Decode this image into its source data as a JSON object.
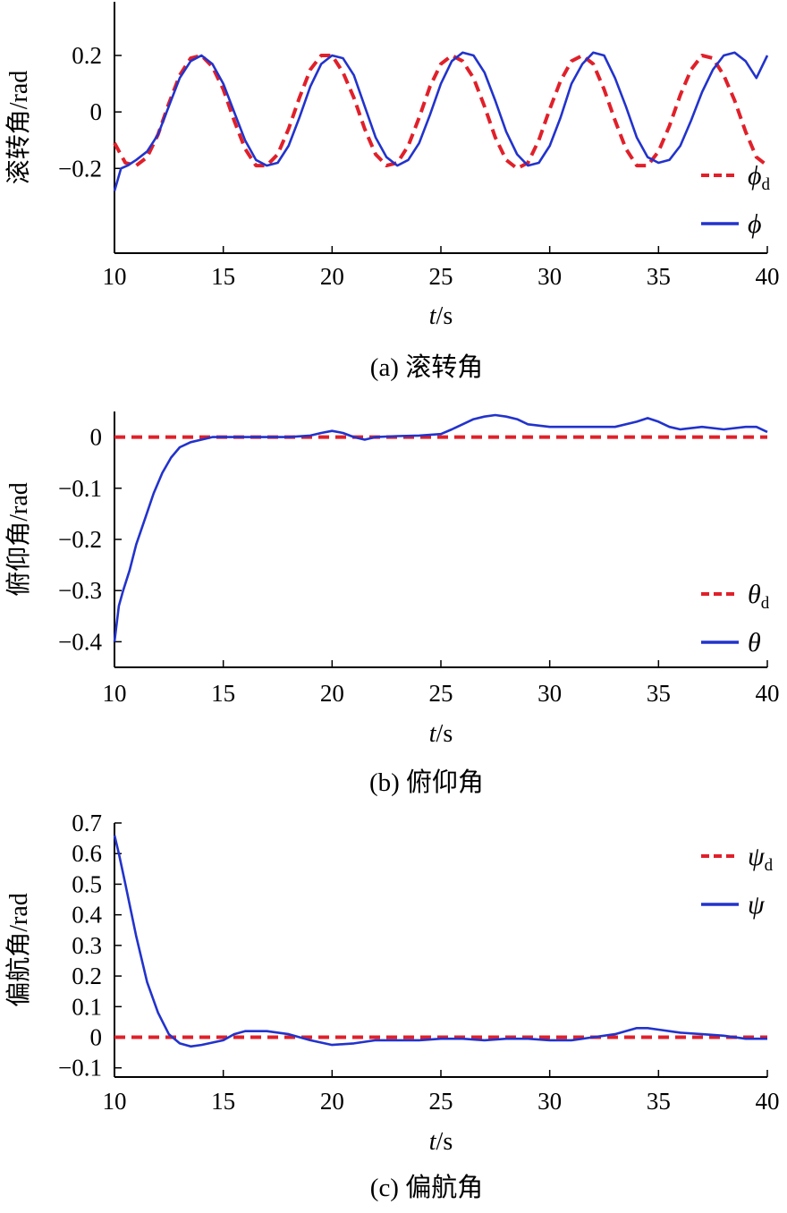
{
  "figure": {
    "x_axis_label_var": "t",
    "x_axis_label_unit": "/s"
  },
  "colors": {
    "desired": "#e0202a",
    "actual": "#2233cc",
    "axis": "#000000"
  },
  "chart_data": [
    {
      "type": "line",
      "id": "roll",
      "caption": "(a) 滚转角",
      "ylabel": "滚转角/rad",
      "xlabel": "t/s",
      "xlim": [
        10,
        40
      ],
      "ylim": [
        -0.5,
        0.39
      ],
      "xticks": [
        10,
        15,
        20,
        25,
        30,
        35,
        40
      ],
      "xtick_labels": [
        "10",
        "15",
        "20",
        "25",
        "30",
        "35",
        "40"
      ],
      "yticks": [
        0.2,
        0,
        -0.2
      ],
      "ytick_labels": [
        "0.2",
        "0",
        "−0.2"
      ],
      "legend_position": "bottom-right",
      "series": [
        {
          "name": "ϕ",
          "subscript": "d",
          "style": "dashed",
          "color": "#e0202a",
          "x": [
            10,
            10.5,
            11,
            11.5,
            12,
            12.5,
            13,
            13.5,
            14,
            14.5,
            15,
            15.5,
            16,
            16.5,
            17,
            17.5,
            18,
            18.5,
            19,
            19.5,
            20,
            20.5,
            21,
            21.5,
            22,
            22.5,
            23,
            23.5,
            24,
            24.5,
            25,
            25.5,
            26,
            26.5,
            27,
            27.5,
            28,
            28.5,
            29,
            29.5,
            30,
            30.5,
            31,
            31.5,
            32,
            32.5,
            33,
            33.5,
            34,
            34.5,
            35,
            35.5,
            36,
            36.5,
            37,
            37.5,
            38,
            38.5,
            39,
            39.5,
            40
          ],
          "y": [
            -0.11,
            -0.18,
            -0.19,
            -0.16,
            -0.08,
            0.03,
            0.13,
            0.19,
            0.2,
            0.16,
            0.08,
            -0.03,
            -0.13,
            -0.19,
            -0.19,
            -0.15,
            -0.06,
            0.05,
            0.15,
            0.2,
            0.2,
            0.14,
            0.05,
            -0.06,
            -0.15,
            -0.19,
            -0.18,
            -0.12,
            -0.02,
            0.09,
            0.17,
            0.2,
            0.18,
            0.12,
            0.02,
            -0.09,
            -0.17,
            -0.2,
            -0.18,
            -0.1,
            0.01,
            0.11,
            0.18,
            0.2,
            0.17,
            0.08,
            -0.03,
            -0.13,
            -0.19,
            -0.19,
            -0.14,
            -0.05,
            0.06,
            0.15,
            0.2,
            0.19,
            0.13,
            0.04,
            -0.07,
            -0.16,
            -0.19
          ]
        },
        {
          "name": "ϕ",
          "subscript": "",
          "style": "solid",
          "color": "#2233cc",
          "x": [
            10,
            10.3,
            10.6,
            11,
            11.5,
            12,
            12.5,
            13,
            13.5,
            14,
            14.5,
            15,
            15.5,
            16,
            16.5,
            17,
            17.5,
            18,
            18.5,
            19,
            19.5,
            20,
            20.5,
            21,
            21.5,
            22,
            22.5,
            23,
            23.5,
            24,
            24.5,
            25,
            25.5,
            26,
            26.5,
            27,
            27.5,
            28,
            28.5,
            29,
            29.5,
            30,
            30.5,
            31,
            31.5,
            32,
            32.5,
            33,
            33.5,
            34,
            34.5,
            35,
            35.5,
            36,
            36.5,
            37,
            37.5,
            38,
            38.5,
            39,
            39.5,
            40
          ],
          "y": [
            -0.28,
            -0.2,
            -0.19,
            -0.17,
            -0.14,
            -0.08,
            0.02,
            0.12,
            0.18,
            0.2,
            0.17,
            0.1,
            0.0,
            -0.1,
            -0.17,
            -0.19,
            -0.18,
            -0.12,
            -0.02,
            0.09,
            0.17,
            0.2,
            0.19,
            0.13,
            0.02,
            -0.09,
            -0.16,
            -0.19,
            -0.17,
            -0.11,
            -0.01,
            0.1,
            0.18,
            0.21,
            0.2,
            0.14,
            0.04,
            -0.07,
            -0.15,
            -0.19,
            -0.18,
            -0.12,
            -0.02,
            0.1,
            0.17,
            0.21,
            0.2,
            0.12,
            0.02,
            -0.09,
            -0.16,
            -0.18,
            -0.17,
            -0.12,
            -0.03,
            0.07,
            0.15,
            0.2,
            0.21,
            0.18,
            0.12,
            0.2
          ]
        }
      ]
    },
    {
      "type": "line",
      "id": "pitch",
      "caption": "(b) 俯仰角",
      "ylabel": "俯仰角/rad",
      "xlabel": "t/s",
      "xlim": [
        10,
        40
      ],
      "ylim": [
        -0.45,
        0.05
      ],
      "xticks": [
        10,
        15,
        20,
        25,
        30,
        35,
        40
      ],
      "xtick_labels": [
        "10",
        "15",
        "20",
        "25",
        "30",
        "35",
        "40"
      ],
      "yticks": [
        0,
        -0.1,
        -0.2,
        -0.3,
        -0.4
      ],
      "ytick_labels": [
        "0",
        "−0.1",
        "−0.2",
        "−0.3",
        "−0.4"
      ],
      "legend_position": "bottom-right",
      "series": [
        {
          "name": "θ",
          "subscript": "d",
          "style": "dashed",
          "color": "#e0202a",
          "x": [
            10,
            40
          ],
          "y": [
            0,
            0
          ]
        },
        {
          "name": "θ",
          "subscript": "",
          "style": "solid",
          "color": "#2233cc",
          "x": [
            10,
            10.2,
            10.4,
            10.7,
            11,
            11.4,
            11.8,
            12.2,
            12.6,
            13,
            13.5,
            14,
            14.5,
            15,
            16,
            17,
            18,
            19,
            19.5,
            20,
            20.5,
            21,
            21.5,
            22,
            23,
            24,
            25,
            25.5,
            26,
            26.5,
            27,
            27.5,
            28,
            28.5,
            29,
            30,
            31,
            32,
            33,
            34,
            34.5,
            35,
            35.5,
            36,
            37,
            38,
            39,
            39.5,
            40
          ],
          "y": [
            -0.4,
            -0.33,
            -0.3,
            -0.26,
            -0.21,
            -0.16,
            -0.11,
            -0.07,
            -0.04,
            -0.02,
            -0.01,
            -0.005,
            0,
            0,
            0,
            0,
            0,
            0.003,
            0.008,
            0.012,
            0.008,
            0.0,
            -0.005,
            0.0,
            0.002,
            0.003,
            0.006,
            0.015,
            0.025,
            0.035,
            0.04,
            0.043,
            0.04,
            0.035,
            0.025,
            0.02,
            0.02,
            0.02,
            0.02,
            0.03,
            0.037,
            0.03,
            0.02,
            0.015,
            0.02,
            0.015,
            0.02,
            0.02,
            0.01
          ]
        }
      ]
    },
    {
      "type": "line",
      "id": "yaw",
      "caption": "(c) 偏航角",
      "ylabel": "偏航角/rad",
      "xlabel": "t/s",
      "xlim": [
        10,
        40
      ],
      "ylim": [
        -0.13,
        0.7
      ],
      "xticks": [
        10,
        15,
        20,
        25,
        30,
        35,
        40
      ],
      "xtick_labels": [
        "10",
        "15",
        "20",
        "25",
        "30",
        "35",
        "40"
      ],
      "yticks": [
        0.7,
        0.6,
        0.5,
        0.4,
        0.3,
        0.2,
        0.1,
        0,
        -0.1
      ],
      "ytick_labels": [
        "0.7",
        "0.6",
        "0.5",
        "0.4",
        "0.3",
        "0.2",
        "0.1",
        "0",
        "−0.1"
      ],
      "legend_position": "top-right",
      "series": [
        {
          "name": "ψ",
          "subscript": "d",
          "style": "dashed",
          "color": "#e0202a",
          "x": [
            10,
            40
          ],
          "y": [
            0,
            0
          ]
        },
        {
          "name": "ψ",
          "subscript": "",
          "style": "solid",
          "color": "#2233cc",
          "x": [
            10,
            10.2,
            10.5,
            11,
            11.5,
            12,
            12.5,
            13,
            13.5,
            14,
            15,
            15.5,
            16,
            17,
            18,
            19,
            20,
            21,
            22,
            23,
            24,
            25,
            26,
            27,
            28,
            29,
            30,
            31,
            32,
            33,
            34,
            34.5,
            35,
            36,
            37,
            38,
            39,
            40
          ],
          "y": [
            0.66,
            0.6,
            0.5,
            0.33,
            0.18,
            0.08,
            0.01,
            -0.02,
            -0.03,
            -0.025,
            -0.01,
            0.01,
            0.02,
            0.02,
            0.01,
            -0.01,
            -0.025,
            -0.02,
            -0.01,
            -0.01,
            -0.01,
            -0.005,
            -0.005,
            -0.01,
            -0.005,
            -0.005,
            -0.01,
            -0.01,
            0.0,
            0.01,
            0.03,
            0.03,
            0.025,
            0.015,
            0.01,
            0.005,
            -0.005,
            -0.005
          ]
        }
      ]
    }
  ]
}
